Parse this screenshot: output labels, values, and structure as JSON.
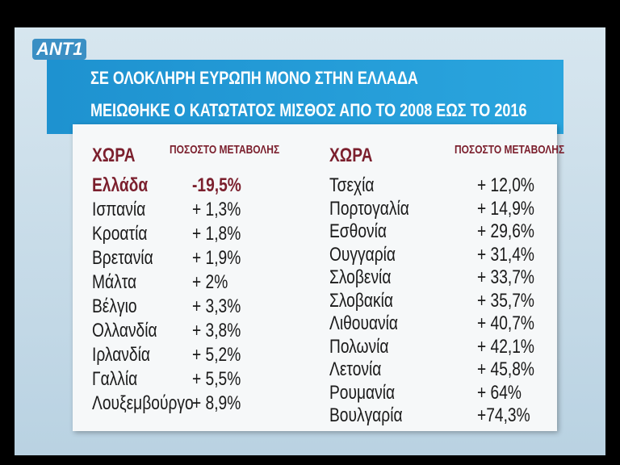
{
  "logo": "ANT1",
  "title": {
    "line1": "ΣΕ ΟΛΟΚΛΗΡΗ ΕΥΡΩΠΗ ΜΟΝΟ ΣΤΗΝ ΕΛΛΑΔΑ",
    "line2": "ΜΕΙΩΘΗΚΕ Ο ΚΑΤΩΤΑΤΟΣ ΜΙΣΘΟΣ ΑΠΟ ΤΟ 2008 ΕΩΣ ΤΟ 2016"
  },
  "tables": [
    {
      "header": [
        "ΧΩΡΑ",
        "ΠΟΣΟΣΤΟ ΜΕΤΑΒΟΛΗΣ"
      ],
      "rows": [
        [
          "Ελλάδα",
          "-19,5%"
        ],
        [
          "Ισπανία",
          "+ 1,3%"
        ],
        [
          "Κροατία",
          "+ 1,8%"
        ],
        [
          "Βρετανία",
          "+ 1,9%"
        ],
        [
          "Μάλτα",
          "+ 2%"
        ],
        [
          "Βέλγιο",
          "+ 3,3%"
        ],
        [
          "Ολλανδία",
          "+ 3,8%"
        ],
        [
          "Ιρλανδία",
          "+ 5,2%"
        ],
        [
          "Γαλλία",
          "+ 5,5%"
        ],
        [
          "Λουξεμβούργο",
          "+ 8,9%"
        ]
      ]
    },
    {
      "header": [
        "ΧΩΡΑ",
        "ΠΟΣΟΣΤΟ ΜΕΤΑΒΟΛΗΣ"
      ],
      "rows": [
        [
          "Τσεχία",
          "+ 12,0%"
        ],
        [
          "Πορτογαλία",
          "+ 14,9%"
        ],
        [
          "Εσθονία",
          "+ 29,6%"
        ],
        [
          "Ουγγαρία",
          "+ 31,4%"
        ],
        [
          "Σλοβενία",
          "+ 33,7%"
        ],
        [
          "Σλοβακία",
          "+ 35,7%"
        ],
        [
          "Λιθουανία",
          "+ 40,7%"
        ],
        [
          "Πολωνία",
          "+ 42,1%"
        ],
        [
          "Λετονία",
          "+ 45,8%"
        ],
        [
          "Ρουμανία",
          "+ 64%"
        ],
        [
          "Βουλγαρία",
          "+74,3%"
        ]
      ]
    }
  ]
}
